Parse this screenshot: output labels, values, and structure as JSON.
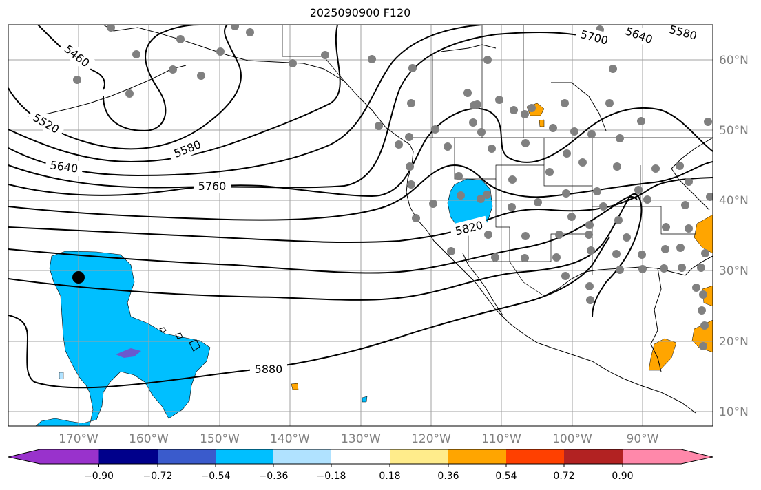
{
  "title": "2025090900 F120",
  "map": {
    "lat_labels": [
      "60°N",
      "50°N",
      "40°N",
      "30°N",
      "20°N",
      "10°N"
    ],
    "lon_labels": [
      "170°W",
      "160°W",
      "150°W",
      "140°W",
      "130°W",
      "120°W",
      "110°W",
      "100°W",
      "90°W"
    ],
    "contour_labels": [
      "5460",
      "5520",
      "5580",
      "5640",
      "5700",
      "5760",
      "5820",
      "5880",
      "5640",
      "5580"
    ],
    "colors": {
      "gridline": "#a0a0a0",
      "coast": "#000000",
      "contour": "#000000",
      "station_dot": "#808080",
      "marker": "#000000"
    }
  },
  "colorbar": {
    "ticks": [
      "−0.90",
      "−0.72",
      "−0.54",
      "−0.36",
      "−0.18",
      "0.18",
      "0.36",
      "0.54",
      "0.72",
      "0.90"
    ],
    "colors": [
      "#9932cc",
      "#00008b",
      "#3a5bcc",
      "#00bfff",
      "#b0e2ff",
      "#ffffff",
      "#ffec8b",
      "#ffa500",
      "#ff4000",
      "#b22222",
      "#ff88aa"
    ]
  }
}
